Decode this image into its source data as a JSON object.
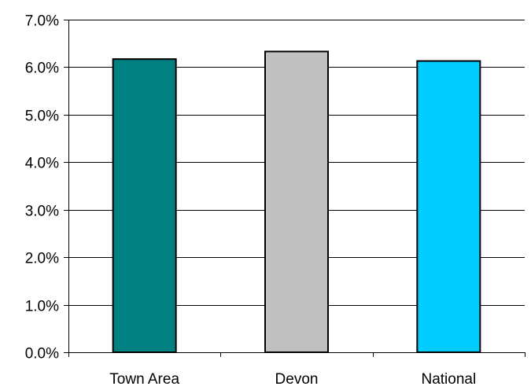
{
  "chart_data": {
    "type": "bar",
    "title": "",
    "xlabel": "",
    "ylabel": "",
    "categories": [
      "Town Area",
      "Devon",
      "National"
    ],
    "values": [
      6.17,
      6.33,
      6.13
    ],
    "colors": [
      "#008080",
      "#C0C0C0",
      "#00CCFF"
    ],
    "ylim": [
      0,
      7
    ],
    "yticks": [
      0,
      1,
      2,
      3,
      4,
      5,
      6,
      7
    ],
    "ytick_labels": [
      "0.0%",
      "1.0%",
      "2.0%",
      "3.0%",
      "4.0%",
      "5.0%",
      "6.0%",
      "7.0%"
    ],
    "unit": "%",
    "grid": true,
    "legend": "none"
  }
}
